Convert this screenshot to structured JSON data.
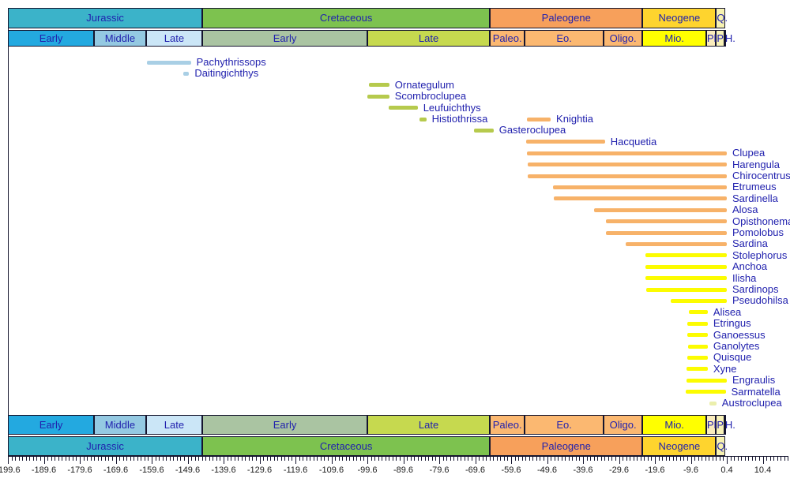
{
  "chart_data": {
    "type": "timeline",
    "title": "",
    "description": "Stratigraphic range chart of clupeomorph fish genera from Jurassic to present",
    "time_axis": {
      "unit": "Ma",
      "min": -199.6,
      "max": 17.4,
      "minor_tick_step": 1,
      "labeled_ticks": [
        -199.6,
        -189.6,
        -179.6,
        -169.6,
        -159.6,
        -149.6,
        -139.6,
        -129.6,
        -119.6,
        -109.6,
        -99.6,
        -89.6,
        -79.6,
        -69.6,
        -59.6,
        -49.6,
        -39.6,
        -29.6,
        -19.6,
        -9.6,
        0.4,
        10.4
      ]
    },
    "periods": [
      {
        "label": "Jurassic",
        "start": -199.6,
        "end": -145.5,
        "color": "#3BB3C9"
      },
      {
        "label": "Cretaceous",
        "start": -145.5,
        "end": -65.5,
        "color": "#7DC24F"
      },
      {
        "label": "Paleogene",
        "start": -65.5,
        "end": -23.03,
        "color": "#F7A05B"
      },
      {
        "label": "Neogene",
        "start": -23.03,
        "end": -2.588,
        "color": "#FED42E"
      },
      {
        "label": "Q.",
        "start": -2.588,
        "end": 0,
        "color": "#F7F2B1"
      }
    ],
    "epochs": [
      {
        "label": "Early",
        "start": -199.6,
        "end": -175.6,
        "color": "#23A9E0"
      },
      {
        "label": "Middle",
        "start": -175.6,
        "end": -161.2,
        "color": "#94C9E2"
      },
      {
        "label": "Late",
        "start": -161.2,
        "end": -145.5,
        "color": "#CBE6F7"
      },
      {
        "label": "Early",
        "start": -145.5,
        "end": -99.6,
        "color": "#AAC4A2"
      },
      {
        "label": "Late",
        "start": -99.6,
        "end": -65.5,
        "color": "#C6D94F"
      },
      {
        "label": "Paleo.",
        "start": -65.5,
        "end": -55.8,
        "color": "#FBB871"
      },
      {
        "label": "Eo.",
        "start": -55.8,
        "end": -33.9,
        "color": "#FBB871"
      },
      {
        "label": "Oligo.",
        "start": -33.9,
        "end": -23.03,
        "color": "#FBB871"
      },
      {
        "label": "Mio.",
        "start": -23.03,
        "end": -5.332,
        "color": "#FFFF00"
      },
      {
        "label": "Pl",
        "start": -5.332,
        "end": -2.588,
        "color": "#FAECBC"
      },
      {
        "label": "P",
        "start": -2.588,
        "end": -0.3,
        "color": "#F8F2B8"
      },
      {
        "label": "H.",
        "start": -0.3,
        "end": 0,
        "color": "#FDF8D8"
      }
    ],
    "bar_colors": {
      "jurassic": "#A9CFE5",
      "cretaceous": "#B6CA4D",
      "paleogene": "#F7B269",
      "neogene": "#FCFC00",
      "quaternary": "#EBEFAC"
    },
    "taxa": [
      {
        "name": "Pachythrissops",
        "start": -160.9,
        "end": -148.7,
        "period": "jurassic",
        "row": 0
      },
      {
        "name": "Daitingichthys",
        "start": -150.9,
        "end": -149.2,
        "period": "jurassic",
        "row": 1
      },
      {
        "name": "Ornategulum",
        "start": -99.1,
        "end": -93.5,
        "period": "cretaceous",
        "row": 2
      },
      {
        "name": "Scombroclupea",
        "start": -99.6,
        "end": -93.5,
        "period": "cretaceous",
        "row": 3
      },
      {
        "name": "Leufuichthys",
        "start": -93.6,
        "end": -85.6,
        "period": "cretaceous",
        "row": 4
      },
      {
        "name": "Histiothrissa",
        "start": -85.1,
        "end": -83.2,
        "period": "cretaceous",
        "row": 5
      },
      {
        "name": "Knightia",
        "start": -55.1,
        "end": -48.6,
        "period": "paleogene",
        "row": 5
      },
      {
        "name": "Gasteroclupea",
        "start": -70.0,
        "end": -64.5,
        "period": "cretaceous",
        "row": 6
      },
      {
        "name": "Hacquetia",
        "start": -55.5,
        "end": -33.5,
        "period": "paleogene",
        "row": 7
      },
      {
        "name": "Clupea",
        "start": -55.2,
        "end": 0.4,
        "period": "paleogene",
        "row": 8
      },
      {
        "name": "Harengula",
        "start": -55.0,
        "end": 0.4,
        "period": "paleogene",
        "row": 9
      },
      {
        "name": "Chirocentrus",
        "start": -55.0,
        "end": 0.4,
        "period": "paleogene",
        "row": 10
      },
      {
        "name": "Etrumeus",
        "start": -48.0,
        "end": 0.4,
        "period": "paleogene",
        "row": 11
      },
      {
        "name": "Sardinella",
        "start": -47.8,
        "end": 0.4,
        "period": "paleogene",
        "row": 12
      },
      {
        "name": "Alosa",
        "start": -36.6,
        "end": 0.4,
        "period": "paleogene",
        "row": 13
      },
      {
        "name": "Opisthonema",
        "start": -33.3,
        "end": 0.4,
        "period": "paleogene",
        "row": 14
      },
      {
        "name": "Pomolobus",
        "start": -33.3,
        "end": 0.4,
        "period": "paleogene",
        "row": 15
      },
      {
        "name": "Sardina",
        "start": -27.8,
        "end": 0.4,
        "period": "paleogene",
        "row": 16
      },
      {
        "name": "Stolephorus",
        "start": -22.3,
        "end": 0.4,
        "period": "neogene",
        "row": 17
      },
      {
        "name": "Anchoa",
        "start": -22.3,
        "end": 0.4,
        "period": "neogene",
        "row": 18
      },
      {
        "name": "Ilisha",
        "start": -22.3,
        "end": 0.4,
        "period": "neogene",
        "row": 19
      },
      {
        "name": "Sardinops",
        "start": -22.1,
        "end": 0.4,
        "period": "neogene",
        "row": 20
      },
      {
        "name": "Pseudohilsa",
        "start": -15.3,
        "end": 0.4,
        "period": "neogene",
        "row": 21
      },
      {
        "name": "Alisea",
        "start": -10.2,
        "end": -4.9,
        "period": "neogene",
        "row": 22
      },
      {
        "name": "Etringus",
        "start": -10.6,
        "end": -4.9,
        "period": "neogene",
        "row": 23
      },
      {
        "name": "Ganoessus",
        "start": -10.6,
        "end": -4.9,
        "period": "neogene",
        "row": 24
      },
      {
        "name": "Ganolytes",
        "start": -10.4,
        "end": -4.9,
        "period": "neogene",
        "row": 25
      },
      {
        "name": "Quisque",
        "start": -10.6,
        "end": -4.9,
        "period": "neogene",
        "row": 26
      },
      {
        "name": "Xyne",
        "start": -10.8,
        "end": -4.9,
        "period": "neogene",
        "row": 27
      },
      {
        "name": "Engraulis",
        "start": -10.8,
        "end": 0.4,
        "period": "neogene",
        "row": 28
      },
      {
        "name": "Sarmatella",
        "start": -11.0,
        "end": 0.1,
        "period": "neogene",
        "row": 29
      },
      {
        "name": "Austroclupea",
        "start": -4.5,
        "end": -2.5,
        "period": "quaternary",
        "row": 30
      }
    ],
    "text_color": "#2121AE",
    "axis_text_color": "#1c1c1c",
    "border_color": "#15152E",
    "background_color": "#FFFFFF"
  }
}
